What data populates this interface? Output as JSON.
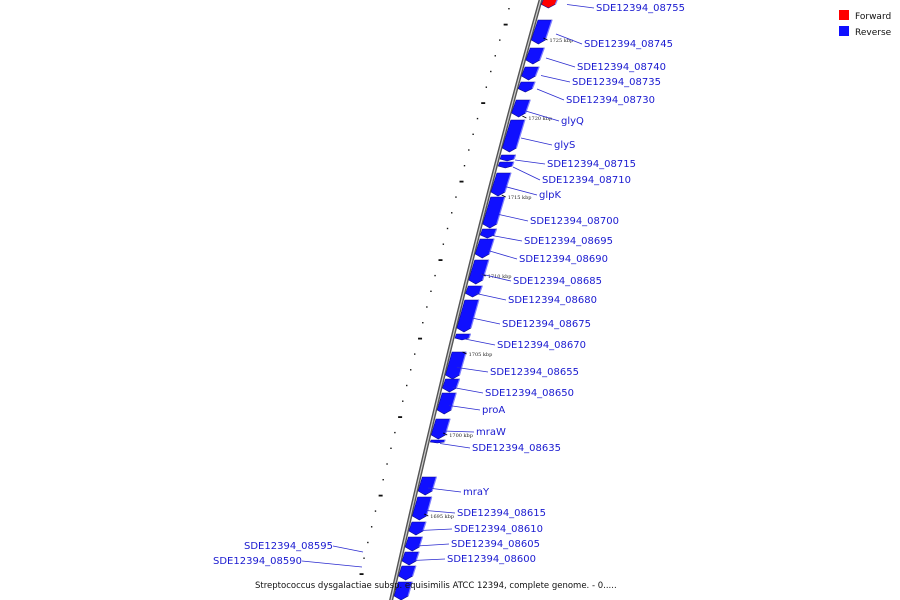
{
  "legend": {
    "forward": {
      "label": "Forward",
      "color": "#ff0000"
    },
    "reverse": {
      "label": "Reverse",
      "color": "#1010ff"
    }
  },
  "footer_text": "Streptococcus dysgalactiae subsp. equisimilis ATCC 12394, complete genome. - 0.....",
  "ticks": [
    "1725 kbp",
    "1720 kbp",
    "1715 kbp",
    "1710 kbp",
    "1705 kbp",
    "1700 kbp",
    "1695 kbp"
  ],
  "genes": [
    {
      "label": "SDE12394_08755",
      "strand": "forward"
    },
    {
      "label": "SDE12394_08745",
      "strand": "reverse"
    },
    {
      "label": "SDE12394_08740",
      "strand": "reverse"
    },
    {
      "label": "SDE12394_08735",
      "strand": "reverse"
    },
    {
      "label": "SDE12394_08730",
      "strand": "reverse"
    },
    {
      "label": "glyQ",
      "strand": "reverse"
    },
    {
      "label": "glyS",
      "strand": "reverse"
    },
    {
      "label": "SDE12394_08715",
      "strand": "reverse"
    },
    {
      "label": "SDE12394_08710",
      "strand": "reverse"
    },
    {
      "label": "glpK",
      "strand": "reverse"
    },
    {
      "label": "SDE12394_08700",
      "strand": "reverse"
    },
    {
      "label": "SDE12394_08695",
      "strand": "reverse"
    },
    {
      "label": "SDE12394_08690",
      "strand": "reverse"
    },
    {
      "label": "SDE12394_08685",
      "strand": "reverse"
    },
    {
      "label": "SDE12394_08680",
      "strand": "reverse"
    },
    {
      "label": "SDE12394_08675",
      "strand": "reverse"
    },
    {
      "label": "SDE12394_08670",
      "strand": "reverse"
    },
    {
      "label": "SDE12394_08655",
      "strand": "reverse"
    },
    {
      "label": "SDE12394_08650",
      "strand": "reverse"
    },
    {
      "label": "proA",
      "strand": "reverse"
    },
    {
      "label": "mraW",
      "strand": "reverse"
    },
    {
      "label": "SDE12394_08635",
      "strand": "reverse"
    },
    {
      "label": "mraY",
      "strand": "reverse"
    },
    {
      "label": "SDE12394_08615",
      "strand": "reverse"
    },
    {
      "label": "SDE12394_08610",
      "strand": "reverse"
    },
    {
      "label": "SDE12394_08605",
      "strand": "reverse"
    },
    {
      "label": "SDE12394_08600",
      "strand": "reverse"
    },
    {
      "label": "SDE12394_08595",
      "strand": "reverse"
    },
    {
      "label": "SDE12394_08590",
      "strand": "reverse"
    }
  ]
}
